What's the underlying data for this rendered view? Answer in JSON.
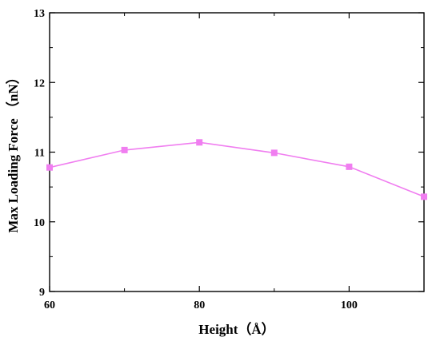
{
  "chart_data": {
    "type": "line",
    "title": "",
    "xlabel": "Height（Å）",
    "ylabel": "Max Loading Force （nN）",
    "xlim": [
      60,
      110
    ],
    "ylim": [
      9,
      13
    ],
    "x_ticks": [
      60,
      80,
      100
    ],
    "y_ticks": [
      9,
      10,
      11,
      12,
      13
    ],
    "x_minor_ticks": [
      70,
      90,
      110
    ],
    "y_minor_ticks": [
      9.5,
      10.5,
      11.5,
      12.5
    ],
    "grid": false,
    "legend": "none",
    "series": [
      {
        "color": "#f07ef0",
        "marker": "square",
        "x": [
          60,
          70,
          80,
          90,
          100,
          110
        ],
        "y": [
          10.78,
          11.03,
          11.14,
          10.99,
          10.79,
          10.36
        ]
      }
    ]
  }
}
